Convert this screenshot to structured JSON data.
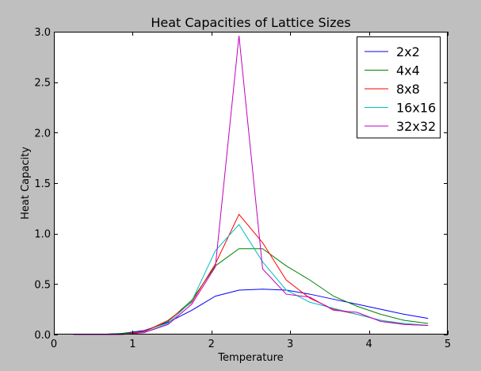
{
  "chart_data": {
    "type": "line",
    "title": "Heat Capacities of Lattice Sizes",
    "xlabel": "Temperature",
    "ylabel": "Heat Capacity",
    "xlim": [
      0,
      5
    ],
    "ylim": [
      0,
      3.0
    ],
    "x_ticks": [
      0,
      1,
      2,
      3,
      4,
      5
    ],
    "x_tick_labels": [
      "0",
      "1",
      "2",
      "3",
      "4",
      "5"
    ],
    "y_ticks": [
      0,
      0.5,
      1.0,
      1.5,
      2.0,
      2.5,
      3.0
    ],
    "y_tick_labels": [
      "0.0",
      "0.5",
      "1.0",
      "1.5",
      "2.0",
      "2.5",
      "3.0"
    ],
    "grid": false,
    "legend_position": "top-right",
    "x": [
      0.25,
      0.55,
      0.85,
      1.15,
      1.45,
      1.75,
      2.05,
      2.35,
      2.65,
      2.95,
      3.25,
      3.55,
      3.85,
      4.15,
      4.45,
      4.75
    ],
    "series": [
      {
        "name": "2x2",
        "color": "#0000ff",
        "values": [
          0.0,
          0.0,
          0.01,
          0.04,
          0.12,
          0.24,
          0.38,
          0.44,
          0.45,
          0.44,
          0.4,
          0.35,
          0.3,
          0.25,
          0.2,
          0.16
        ]
      },
      {
        "name": "4x4",
        "color": "#008000",
        "values": [
          0.0,
          0.0,
          0.01,
          0.03,
          0.13,
          0.34,
          0.68,
          0.85,
          0.85,
          0.68,
          0.54,
          0.38,
          0.28,
          0.2,
          0.14,
          0.11
        ]
      },
      {
        "name": "8x8",
        "color": "#ff0000",
        "values": [
          0.0,
          0.0,
          0.0,
          0.03,
          0.14,
          0.32,
          0.7,
          1.19,
          0.91,
          0.54,
          0.36,
          0.25,
          0.2,
          0.14,
          0.1,
          0.09
        ]
      },
      {
        "name": "16x16",
        "color": "#00bfbf",
        "values": [
          0.0,
          0.0,
          0.0,
          0.02,
          0.11,
          0.33,
          0.83,
          1.09,
          0.72,
          0.44,
          0.32,
          0.26,
          0.2,
          0.14,
          0.11,
          0.09
        ]
      },
      {
        "name": "32x32",
        "color": "#bf00bf",
        "values": [
          0.0,
          0.0,
          0.0,
          0.02,
          0.1,
          0.3,
          0.67,
          2.96,
          0.65,
          0.4,
          0.37,
          0.24,
          0.22,
          0.13,
          0.1,
          0.09
        ]
      }
    ]
  }
}
